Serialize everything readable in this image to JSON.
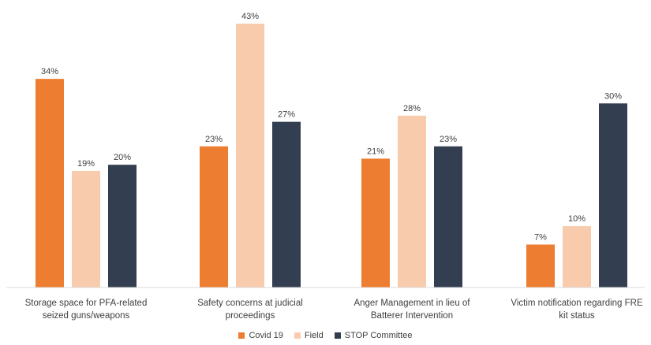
{
  "chart_data": {
    "type": "bar",
    "categories": [
      [
        "Storage space for PFA-related",
        "seized guns/weapons"
      ],
      [
        "Safety concerns at judicial",
        "proceedings"
      ],
      [
        "Anger Management in lieu of",
        "Batterer Intervention"
      ],
      [
        "Victim notification regarding FRE",
        "kit status"
      ]
    ],
    "series": [
      {
        "name": "Covid 19",
        "color": "#ED7D31",
        "values": [
          34,
          23,
          21,
          7
        ]
      },
      {
        "name": "Field",
        "color": "#F8CBAD",
        "values": [
          19,
          43,
          28,
          10
        ]
      },
      {
        "name": "STOP Committee",
        "color": "#333F50",
        "values": [
          20,
          27,
          23,
          30
        ]
      }
    ],
    "value_suffix": "%",
    "ylim": [
      0,
      45
    ],
    "grid": false,
    "legend_position": "bottom"
  }
}
